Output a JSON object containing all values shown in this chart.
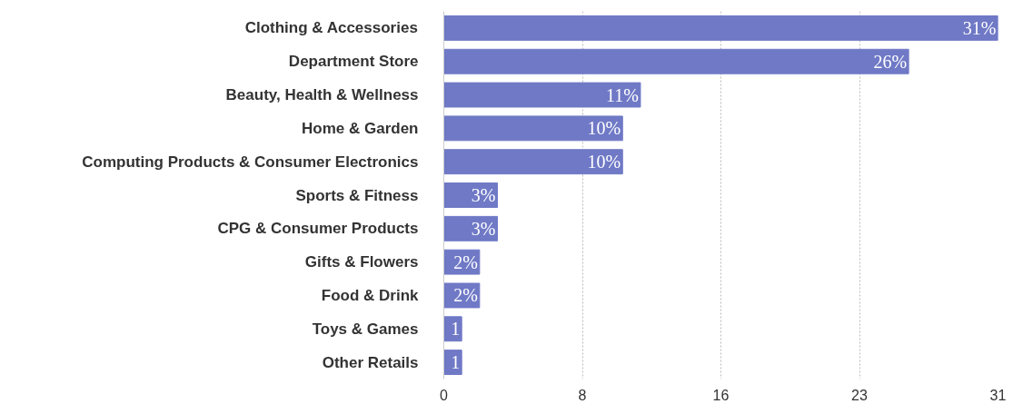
{
  "chart_data": {
    "type": "bar",
    "orientation": "horizontal",
    "categories": [
      "Clothing & Accessories",
      "Department Store",
      "Beauty, Health & Wellness",
      "Home & Garden",
      "Computing Products & Consumer Electronics",
      "Sports & Fitness",
      "CPG & Consumer Products",
      "Gifts & Flowers",
      "Food & Drink",
      "Toys & Games",
      "Other Retails"
    ],
    "values": [
      31,
      26,
      11,
      10,
      10,
      3,
      3,
      2,
      2,
      1,
      1
    ],
    "value_labels": [
      "31%",
      "26%",
      "11%",
      "10%",
      "10%",
      "3%",
      "3%",
      "2%",
      "2%",
      "1",
      "1"
    ],
    "color": "#6f79c6",
    "xlim": [
      0,
      31
    ],
    "xticks": [
      0,
      {
        "value": 7.75,
        "label": "8"
      },
      {
        "value": 15.5,
        "label": "16"
      },
      {
        "value": 23.25,
        "label": "23"
      },
      31
    ],
    "grid": "x"
  }
}
